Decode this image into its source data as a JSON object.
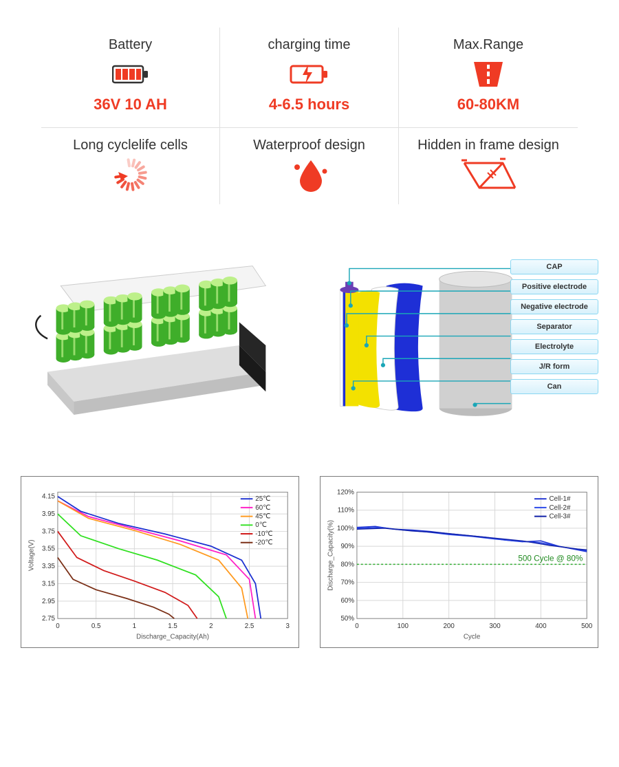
{
  "colors": {
    "accent": "#ef3b24",
    "text": "#333333",
    "divider": "#e0e0e0",
    "label_bg_top": "#f2fbff",
    "label_bg_bot": "#d8f1fb",
    "label_border": "#8ad7f2",
    "chart_border": "#7a7a7a",
    "grid": "#d8d8d8"
  },
  "specs": {
    "row1": [
      {
        "title": "Battery",
        "value": "36V 10 AH",
        "value_color": "#ef3b24",
        "icon": "battery"
      },
      {
        "title": "charging time",
        "value": "4-6.5 hours",
        "value_color": "#ef3b24",
        "icon": "charge"
      },
      {
        "title": "Max.Range",
        "value": "60-80KM",
        "value_color": "#ef3b24",
        "icon": "road"
      }
    ],
    "row2": [
      {
        "title": "Long cyclelife cells",
        "icon": "cycle"
      },
      {
        "title": "Waterproof design",
        "icon": "water"
      },
      {
        "title": "Hidden in frame design",
        "icon": "frame"
      }
    ]
  },
  "cell_layers": {
    "labels": [
      "CAP",
      "Positive electrode",
      "Negative electrode",
      "Separator",
      "Electrolyte",
      "J/R form",
      "Can"
    ],
    "sheet_colors": [
      "#f3e100",
      "#ffffff",
      "#1e2fd6",
      "#cfcfcf"
    ],
    "cap_color": "#6b3fb5",
    "leader_color": "#1aa6b7"
  },
  "battery_pack": {
    "cell_color": "#3fae2a",
    "cell_shine": "#bdf08a",
    "casing_color": "#e8e8e8",
    "cap_color": "#1a1a1a",
    "rows": 2,
    "groups": 4,
    "cells_per_group": 3
  },
  "chart_discharge": {
    "type": "line",
    "xaxis": {
      "label": "Discharge_Capacity(Ah)",
      "min": 0.0,
      "max": 3.0,
      "step": 0.5
    },
    "yaxis": {
      "label": "Voltage(V)",
      "min": 2.75,
      "max": 4.2,
      "ticks": [
        2.75,
        2.95,
        3.15,
        3.35,
        3.55,
        3.75,
        3.95,
        4.15
      ]
    },
    "grid_color": "#d8d8d8",
    "line_width": 1.8,
    "series": [
      {
        "name": "25℃",
        "color": "#1a2fd1",
        "points": [
          [
            0.0,
            4.15
          ],
          [
            0.3,
            3.98
          ],
          [
            0.8,
            3.84
          ],
          [
            1.4,
            3.72
          ],
          [
            2.0,
            3.58
          ],
          [
            2.4,
            3.42
          ],
          [
            2.58,
            3.15
          ],
          [
            2.65,
            2.75
          ]
        ]
      },
      {
        "name": "60℃",
        "color": "#ff1fc6",
        "points": [
          [
            0.0,
            4.1
          ],
          [
            0.4,
            3.92
          ],
          [
            1.0,
            3.78
          ],
          [
            1.6,
            3.64
          ],
          [
            2.2,
            3.48
          ],
          [
            2.5,
            3.2
          ],
          [
            2.58,
            2.75
          ]
        ]
      },
      {
        "name": "45℃",
        "color": "#ff9a1f",
        "points": [
          [
            0.0,
            4.1
          ],
          [
            0.4,
            3.9
          ],
          [
            1.0,
            3.76
          ],
          [
            1.6,
            3.6
          ],
          [
            2.1,
            3.42
          ],
          [
            2.4,
            3.1
          ],
          [
            2.48,
            2.75
          ]
        ]
      },
      {
        "name": "0℃",
        "color": "#2fe01f",
        "points": [
          [
            0.0,
            3.95
          ],
          [
            0.3,
            3.7
          ],
          [
            0.8,
            3.55
          ],
          [
            1.3,
            3.42
          ],
          [
            1.8,
            3.25
          ],
          [
            2.1,
            3.0
          ],
          [
            2.2,
            2.75
          ]
        ]
      },
      {
        "name": "-10℃",
        "color": "#d11a1a",
        "points": [
          [
            0.0,
            3.75
          ],
          [
            0.25,
            3.45
          ],
          [
            0.6,
            3.3
          ],
          [
            1.0,
            3.18
          ],
          [
            1.4,
            3.05
          ],
          [
            1.7,
            2.9
          ],
          [
            1.82,
            2.75
          ]
        ]
      },
      {
        "name": "-20℃",
        "color": "#7a2f16",
        "points": [
          [
            0.0,
            3.45
          ],
          [
            0.2,
            3.2
          ],
          [
            0.5,
            3.08
          ],
          [
            0.9,
            2.98
          ],
          [
            1.25,
            2.88
          ],
          [
            1.45,
            2.8
          ],
          [
            1.52,
            2.75
          ]
        ]
      }
    ]
  },
  "chart_cycle": {
    "type": "line",
    "xaxis": {
      "label": "Cycle",
      "min": 0,
      "max": 500,
      "step": 100
    },
    "yaxis": {
      "label": "Discharge_Capacity(%)",
      "min": 50,
      "max": 120,
      "step": 10
    },
    "grid_color": "#d8d8d8",
    "line_width": 1.5,
    "annotation": {
      "text": "500 Cycle @ 80%",
      "y": 80,
      "color": "#2fae2f",
      "dash": "3,3",
      "text_color": "#1f8a1f",
      "fontsize": 12
    },
    "series": [
      {
        "name": "Cell-1#",
        "color": "#1a2fd1",
        "points": [
          [
            0,
            100.5
          ],
          [
            40,
            101
          ],
          [
            80,
            99.5
          ],
          [
            120,
            99
          ],
          [
            160,
            98.2
          ],
          [
            200,
            97
          ],
          [
            240,
            96
          ],
          [
            280,
            95
          ],
          [
            320,
            93.5
          ],
          [
            360,
            92.5
          ],
          [
            400,
            93
          ],
          [
            440,
            90
          ],
          [
            480,
            88
          ],
          [
            500,
            87
          ]
        ]
      },
      {
        "name": "Cell-2#",
        "color": "#2a48e8",
        "points": [
          [
            0,
            100
          ],
          [
            50,
            100.5
          ],
          [
            100,
            99
          ],
          [
            150,
            98
          ],
          [
            200,
            96.5
          ],
          [
            250,
            95.5
          ],
          [
            300,
            94
          ],
          [
            350,
            92.8
          ],
          [
            400,
            92
          ],
          [
            450,
            89.5
          ],
          [
            500,
            87.5
          ]
        ]
      },
      {
        "name": "Cell-3#",
        "color": "#1020a8",
        "points": [
          [
            0,
            99.5
          ],
          [
            60,
            100
          ],
          [
            120,
            98.5
          ],
          [
            180,
            97.5
          ],
          [
            240,
            96
          ],
          [
            300,
            94.5
          ],
          [
            360,
            93
          ],
          [
            420,
            90.5
          ],
          [
            480,
            88.5
          ],
          [
            500,
            88
          ]
        ]
      }
    ]
  }
}
